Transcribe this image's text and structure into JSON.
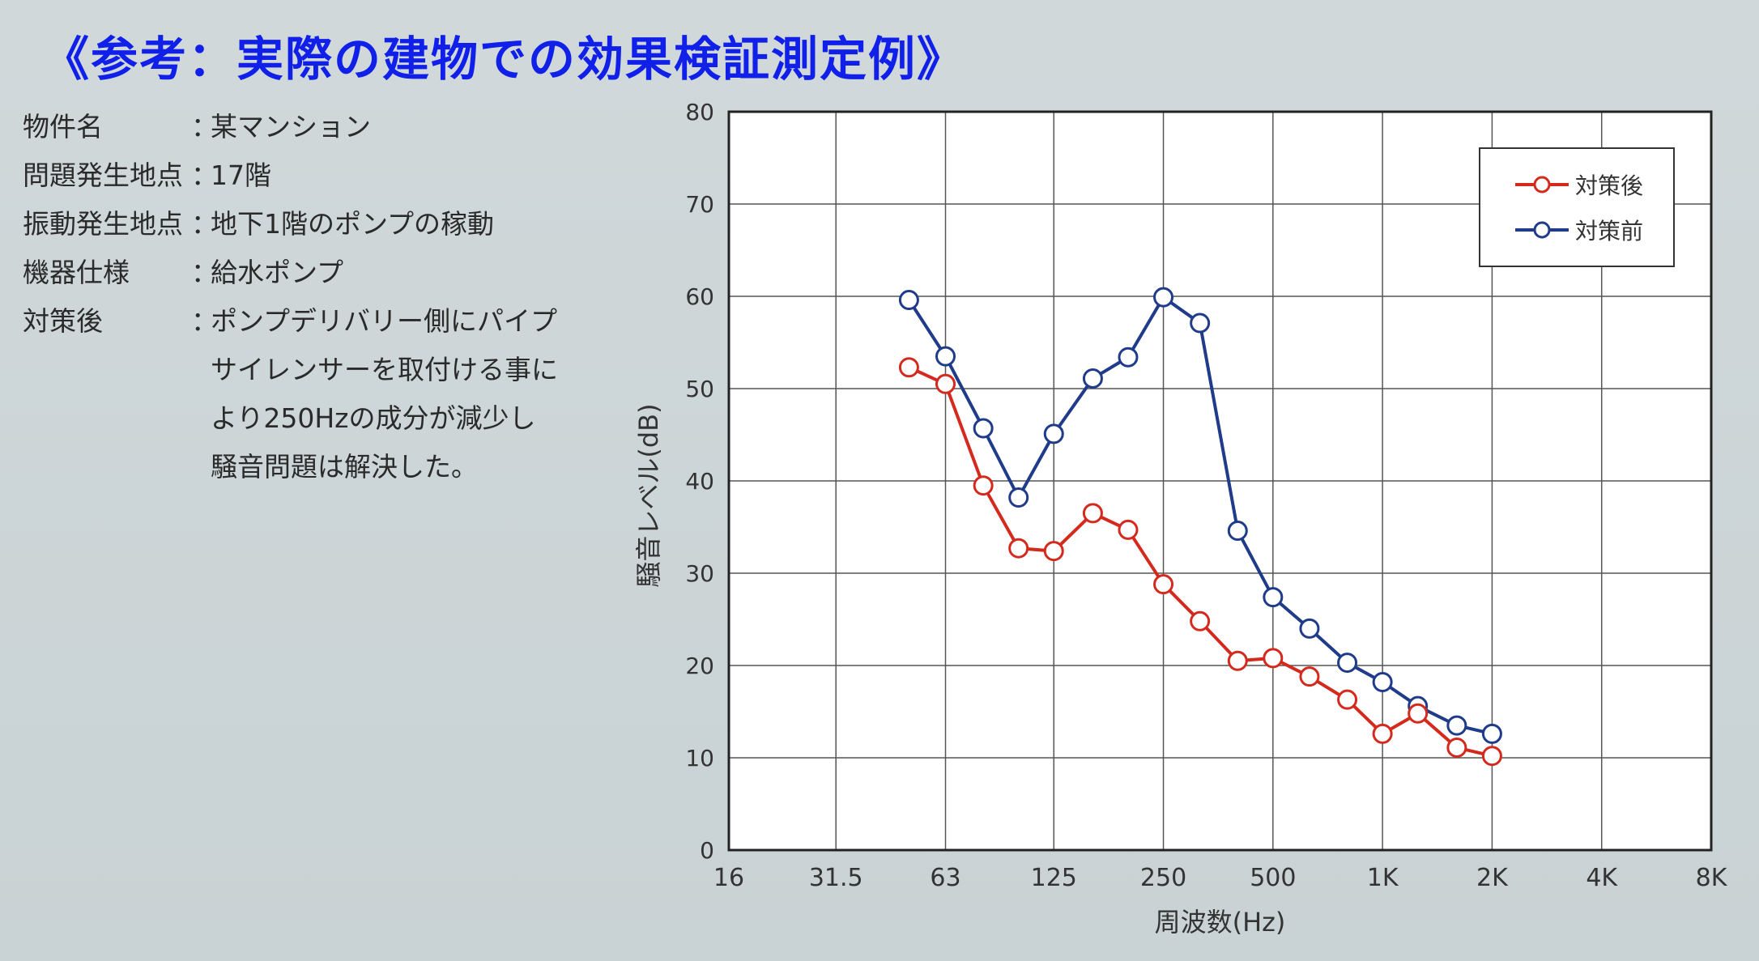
{
  "heading": "《参考：実際の建物での効果検証測定例》",
  "info": {
    "rows": [
      {
        "label": "物件名",
        "colon": "：",
        "value": "某マンション"
      },
      {
        "label": "問題発生地点",
        "colon": "：",
        "value": "17階"
      },
      {
        "label": "振動発生地点",
        "colon": "：",
        "value": "地下1階のポンプの稼動"
      },
      {
        "label": "機器仕様",
        "colon": "：",
        "value": "給水ポンプ"
      },
      {
        "label": "対策後",
        "colon": "：",
        "value": "ポンプデリバリー側にパイプ"
      }
    ],
    "note_lines": [
      "サイレンサーを取付ける事に",
      "より250Hzの成分が減少し",
      "騒音問題は解決した。"
    ]
  },
  "chart_data": {
    "type": "line",
    "xlabel": "周波数(Hz)",
    "ylabel": "騒音レベル(dB)",
    "x_scale": "log",
    "x_ticks": [
      "16",
      "31.5",
      "63",
      "125",
      "250",
      "500",
      "1K",
      "2K",
      "4K",
      "8K"
    ],
    "x_tick_values": [
      16,
      31.5,
      63,
      125,
      250,
      500,
      1000,
      2000,
      4000,
      8000
    ],
    "ylim": [
      0,
      80
    ],
    "y_ticks": [
      0,
      10,
      20,
      30,
      40,
      50,
      60,
      70,
      80
    ],
    "grid": true,
    "legend_position": "top-right",
    "x": [
      50,
      63,
      80,
      100,
      125,
      160,
      200,
      250,
      315,
      400,
      500,
      630,
      800,
      1000,
      1250,
      1600,
      2000
    ],
    "series": [
      {
        "name": "対策後",
        "color": "#d42a1e",
        "values": [
          52.3,
          50.5,
          39.5,
          32.7,
          32.4,
          36.5,
          34.7,
          28.8,
          24.8,
          20.5,
          20.8,
          18.8,
          16.3,
          12.6,
          14.8,
          11.1,
          10.2
        ]
      },
      {
        "name": "対策前",
        "color": "#1f3b8a",
        "values": [
          59.6,
          53.5,
          45.7,
          38.2,
          45.1,
          51.1,
          53.4,
          59.9,
          57.1,
          34.6,
          27.4,
          24.0,
          20.3,
          18.2,
          15.6,
          13.5,
          12.6
        ]
      }
    ]
  }
}
